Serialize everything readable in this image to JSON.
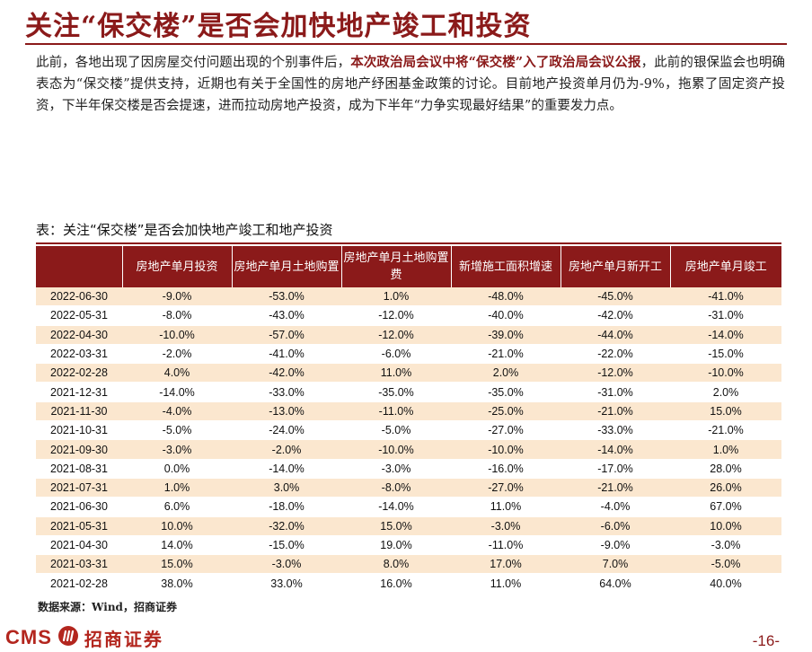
{
  "header": {
    "title": "关注“保交楼”是否会加快地产竣工和投资"
  },
  "body": {
    "part1": "此前，各地出现了因房屋交付问题出现的个别事件后，",
    "highlight": "本次政治局会议中将“保交楼”入了政治局会议公报",
    "part2": "，此前的银保监会也明确表态为“保交楼”提供支持，近期也有关于全国性的房地产纾困基金政策的讨论。目前地产投资单月仍为-9%，拖累了固定资产投资，下半年保交楼是否会提速，进而拉动房地产投资，成为下半年“力争实现最好结果”的重要发力点。"
  },
  "table": {
    "caption": "表：关注“保交楼”是否会加快地产竣工和地产投资",
    "columns": [
      "",
      "房地产单月投资",
      "房地产单月土地购置",
      "房地产单月土地购置费",
      "新增施工面积增速",
      "房地产单月新开工",
      "房地产单月竣工"
    ],
    "rows": [
      [
        "2022-06-30",
        "-9.0%",
        "-53.0%",
        "1.0%",
        "-48.0%",
        "-45.0%",
        "-41.0%"
      ],
      [
        "2022-05-31",
        "-8.0%",
        "-43.0%",
        "-12.0%",
        "-40.0%",
        "-42.0%",
        "-31.0%"
      ],
      [
        "2022-04-30",
        "-10.0%",
        "-57.0%",
        "-12.0%",
        "-39.0%",
        "-44.0%",
        "-14.0%"
      ],
      [
        "2022-03-31",
        "-2.0%",
        "-41.0%",
        "-6.0%",
        "-21.0%",
        "-22.0%",
        "-15.0%"
      ],
      [
        "2022-02-28",
        "4.0%",
        "-42.0%",
        "11.0%",
        "2.0%",
        "-12.0%",
        "-10.0%"
      ],
      [
        "2021-12-31",
        "-14.0%",
        "-33.0%",
        "-35.0%",
        "-35.0%",
        "-31.0%",
        "2.0%"
      ],
      [
        "2021-11-30",
        "-4.0%",
        "-13.0%",
        "-11.0%",
        "-25.0%",
        "-21.0%",
        "15.0%"
      ],
      [
        "2021-10-31",
        "-5.0%",
        "-24.0%",
        "-5.0%",
        "-27.0%",
        "-33.0%",
        "-21.0%"
      ],
      [
        "2021-09-30",
        "-3.0%",
        "-2.0%",
        "-10.0%",
        "-10.0%",
        "-14.0%",
        "1.0%"
      ],
      [
        "2021-08-31",
        "0.0%",
        "-14.0%",
        "-3.0%",
        "-16.0%",
        "-17.0%",
        "28.0%"
      ],
      [
        "2021-07-31",
        "1.0%",
        "3.0%",
        "-8.0%",
        "-27.0%",
        "-21.0%",
        "26.0%"
      ],
      [
        "2021-06-30",
        "6.0%",
        "-18.0%",
        "-14.0%",
        "11.0%",
        "-4.0%",
        "67.0%"
      ],
      [
        "2021-05-31",
        "10.0%",
        "-32.0%",
        "15.0%",
        "-3.0%",
        "-6.0%",
        "10.0%"
      ],
      [
        "2021-04-30",
        "14.0%",
        "-15.0%",
        "19.0%",
        "-11.0%",
        "-9.0%",
        "-3.0%"
      ],
      [
        "2021-03-31",
        "15.0%",
        "-3.0%",
        "8.0%",
        "17.0%",
        "7.0%",
        "-5.0%"
      ],
      [
        "2021-02-28",
        "38.0%",
        "33.0%",
        "16.0%",
        "11.0%",
        "64.0%",
        "40.0%"
      ]
    ],
    "source": "数据来源：Wind，招商证券"
  },
  "footer": {
    "logo_latin": "CMS",
    "logo_cn": "招商证券",
    "page_number": "-16-"
  },
  "colors": {
    "brand": "#8b1a1a",
    "row_stripe": "#fbe7cf",
    "logo_red": "#b3261e"
  },
  "icons": {
    "logo": "cms-logo-icon"
  }
}
